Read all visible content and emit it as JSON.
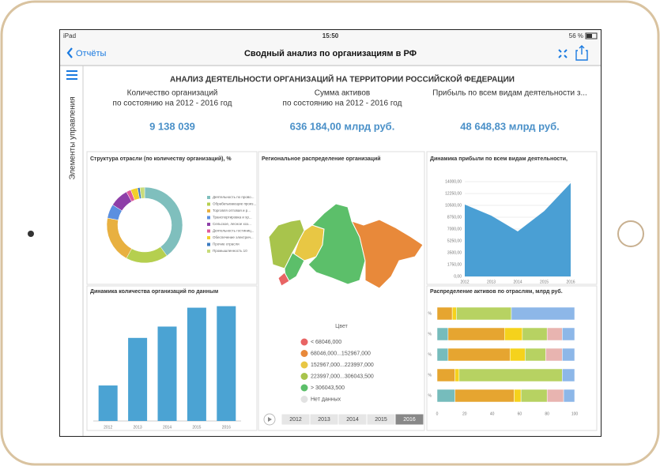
{
  "status_bar": {
    "device": "iPad",
    "time": "15:50",
    "battery": "56 %"
  },
  "nav": {
    "back": "Отчёты",
    "title": "Сводный анализ по организациям в РФ"
  },
  "sidebar": {
    "label": "Элементы управления"
  },
  "header": {
    "title": "АНАЛИЗ ДЕЯТЕЛЬНОСТИ ОРГАНИЗАЦИЙ НА ТЕРРИТОРИИ РОССИЙСКОЙ ФЕДЕРАЦИИ"
  },
  "kpis": [
    {
      "label": [
        "Количество организаций",
        "по состоянию на 2012 - 2016 год"
      ],
      "value": "9 138 039"
    },
    {
      "label": [
        "Сумма активов",
        "по состоянию на 2012 - 2016 год"
      ],
      "value": "636 184,00 млрд руб."
    },
    {
      "label": [
        "Прибыль по всем видам деятельности з..."
      ],
      "value": "48 648,83 млрд руб."
    }
  ],
  "panels": {
    "structure": {
      "type": "donut",
      "title": "Структура отрасли (по количеству организаций), %",
      "categories": [
        "Деятельность по прово...",
        "Обрабатывающие произ...",
        "Торговля оптовая и р...",
        "Транспортировка и хр...",
        "Сельское, лесное хоз...",
        "Деятельность гостиниц...",
        "Обеспечение электрич...",
        "Прочие отрасли",
        "Промышленность 10"
      ],
      "values": [
        40,
        18,
        20,
        6,
        8,
        2,
        3,
        1,
        2
      ],
      "colors": [
        "#7fbfbd",
        "#b5cf4f",
        "#e8b040",
        "#5b8fe0",
        "#8e3fa8",
        "#e05a9a",
        "#f2d02a",
        "#3a7ac0",
        "#c8dc7a"
      ]
    },
    "count_dynamics": {
      "type": "bar",
      "title": "Динамика количества организаций по данным",
      "categories": [
        "2012",
        "2013",
        "2014",
        "2015",
        "2016"
      ],
      "values": [
        47,
        110,
        125,
        150,
        152
      ],
      "color": "#4ba3d3",
      "ylim": [
        0,
        160
      ]
    },
    "regional": {
      "title": "Региональное распределение организаций",
      "legend_title": "Цвет",
      "legend": [
        {
          "label": "< 68046,000",
          "color": "#e86464"
        },
        {
          "label": "68046,000...152967,000",
          "color": "#e8893a"
        },
        {
          "label": "152967,000...223997,000",
          "color": "#e8c744"
        },
        {
          "label": "223997,000...306043,500",
          "color": "#a8c44c"
        },
        {
          "label": "> 306043,500",
          "color": "#5cbf6a"
        },
        {
          "label": "Нет данных",
          "color": "#e2e2e2"
        }
      ],
      "years": [
        "2012",
        "2013",
        "2014",
        "2015",
        "2016"
      ],
      "selected_year": 4
    },
    "profit_dynamics": {
      "type": "area",
      "title": "Динамика прибыли по всем видам деятельности,",
      "categories": [
        "2012",
        "2013",
        "2014",
        "2015",
        "2016"
      ],
      "values": [
        10613.1,
        8983,
        6650,
        9650,
        13800
      ],
      "color": "#4a9fd4",
      "ylim": [
        0,
        14000
      ],
      "yticks": [
        {
          "value": 0,
          "label": "0,00"
        },
        {
          "value": 1750,
          "label": "1750,00"
        },
        {
          "value": 3500,
          "label": "3500,00"
        },
        {
          "value": 5250,
          "label": "5250,00"
        },
        {
          "value": 7000,
          "label": "7000,00"
        },
        {
          "value": 8750,
          "label": "8750,00"
        },
        {
          "value": 10500,
          "label": "10500,00"
        },
        {
          "value": 12250,
          "label": "12250,00"
        },
        {
          "value": 14000,
          "label": "14000,00"
        }
      ]
    },
    "assets": {
      "type": "stacked_bar",
      "title": "Распределение активов по отраслям, млрд руб.",
      "categories": [
        "%",
        "%",
        "%",
        "%",
        "%"
      ],
      "series": [
        {
          "color": "#76bcbc",
          "values": [
            0,
            8,
            8,
            0,
            13
          ]
        },
        {
          "color": "#e6a530",
          "values": [
            11,
            41,
            45,
            13,
            43
          ]
        },
        {
          "color": "#f5d21c",
          "values": [
            3,
            13,
            11,
            3,
            5
          ]
        },
        {
          "color": "#b7d262",
          "values": [
            40,
            18,
            15,
            75,
            19
          ]
        },
        {
          "color": "#e8b4b0",
          "values": [
            0,
            11,
            12,
            0,
            12
          ]
        },
        {
          "color": "#8db7e8",
          "values": [
            46,
            9,
            9,
            9,
            8
          ]
        }
      ],
      "xlim": [
        0,
        100
      ],
      "xticks": [
        0,
        20,
        40,
        60,
        80,
        100
      ]
    }
  }
}
